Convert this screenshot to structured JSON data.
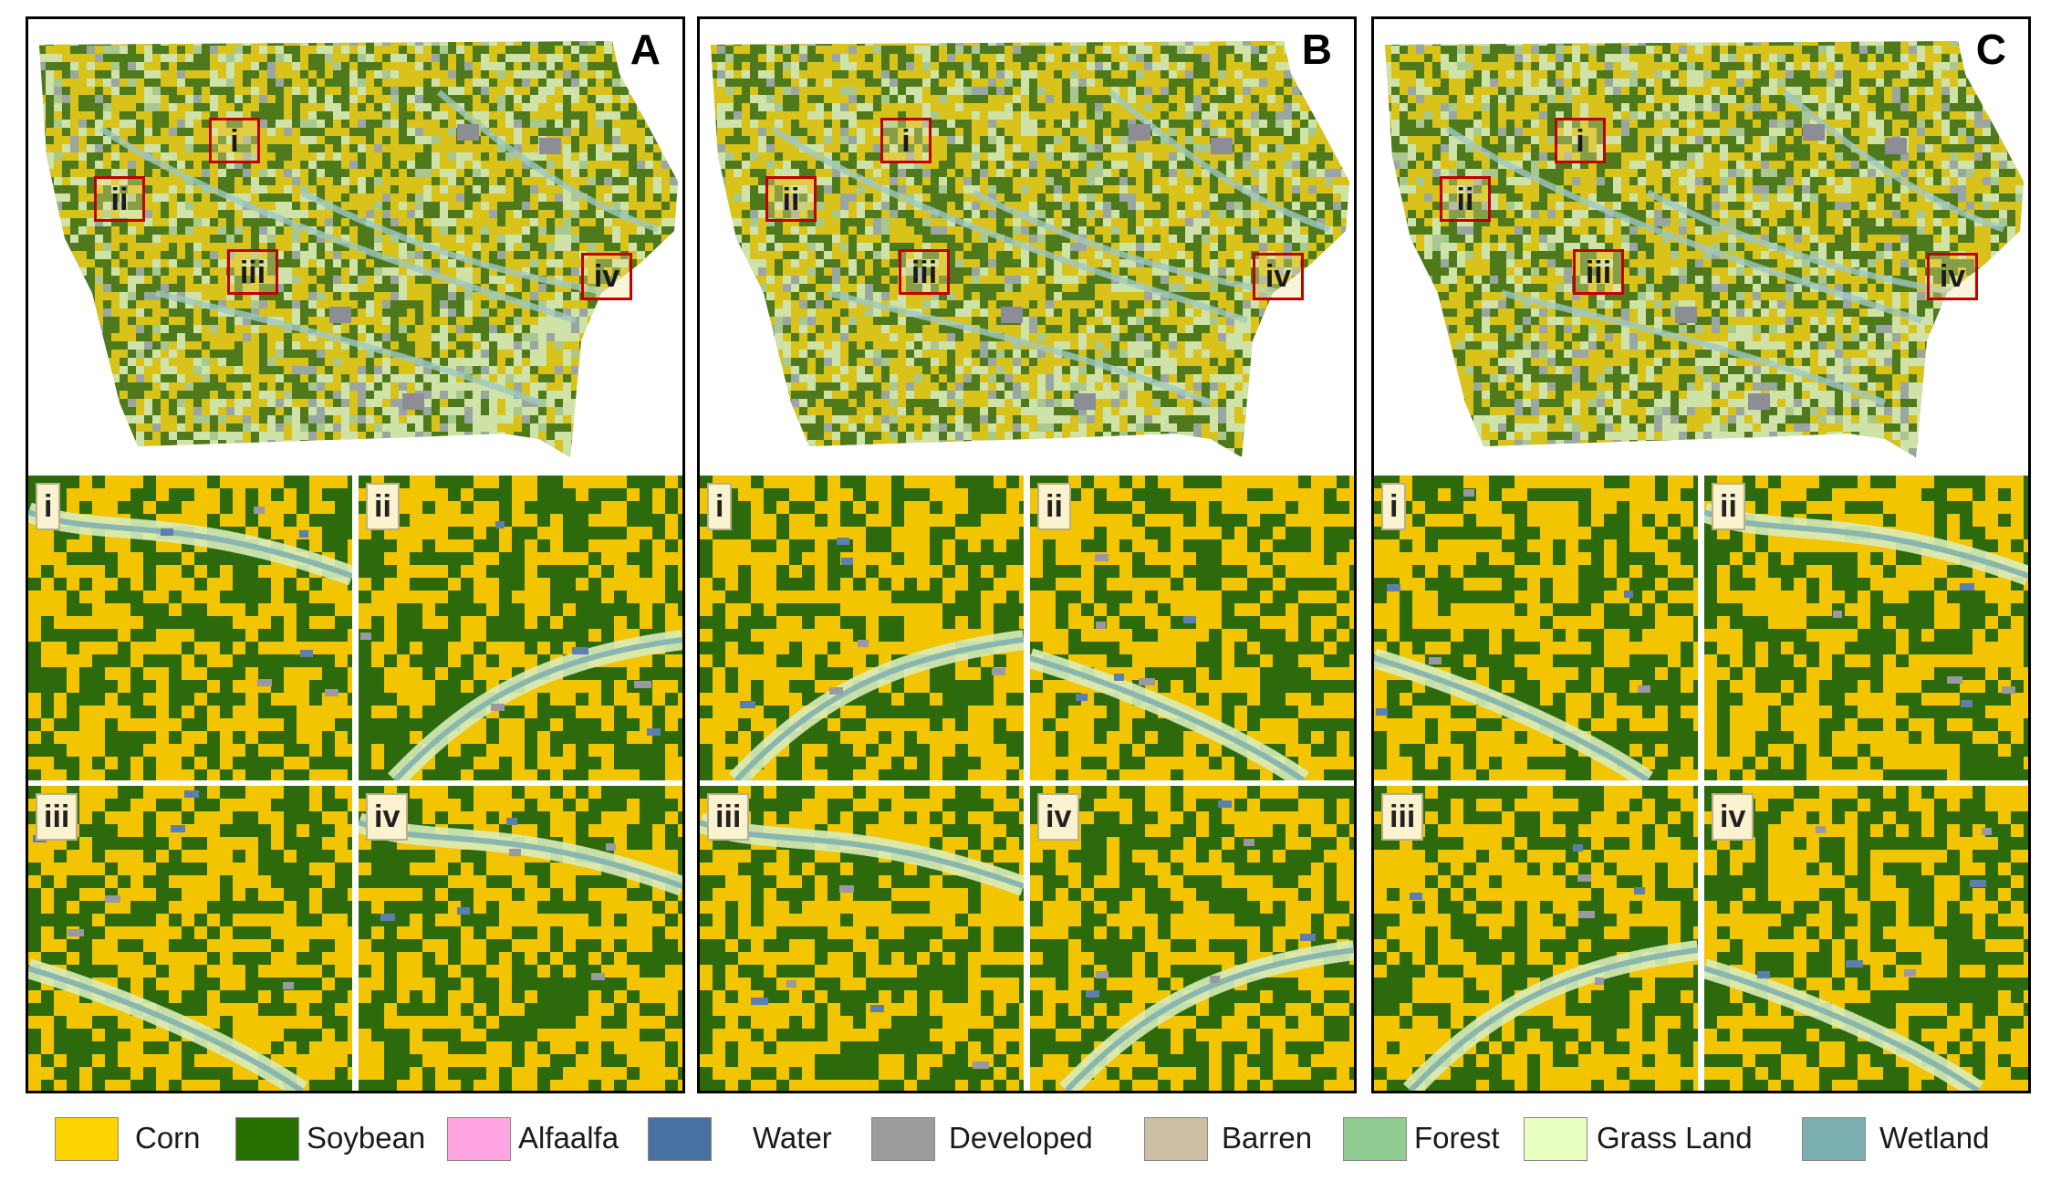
{
  "panels": [
    {
      "letter": "A",
      "insets": [
        "i",
        "ii",
        "iii",
        "iv"
      ]
    },
    {
      "letter": "B",
      "insets": [
        "i",
        "ii",
        "iii",
        "iv"
      ]
    },
    {
      "letter": "C",
      "insets": [
        "i",
        "ii",
        "iii",
        "iv"
      ]
    }
  ],
  "map_boxes": [
    "i",
    "ii",
    "iii",
    "iv"
  ],
  "legend": [
    {
      "label": "Corn",
      "color": "#ffd300"
    },
    {
      "label": "Soybean",
      "color": "#267000"
    },
    {
      "label": "Alfaalfa",
      "color": "#ffa5e2"
    },
    {
      "label": "Water",
      "color": "#4970a3"
    },
    {
      "label": "Developed",
      "color": "#9c9c9c"
    },
    {
      "label": "Barren",
      "color": "#ccbfa3"
    },
    {
      "label": "Forest",
      "color": "#93cc93"
    },
    {
      "label": "Grass Land",
      "color": "#e8ffbf"
    },
    {
      "label": "Wetland",
      "color": "#7cafaf"
    }
  ]
}
